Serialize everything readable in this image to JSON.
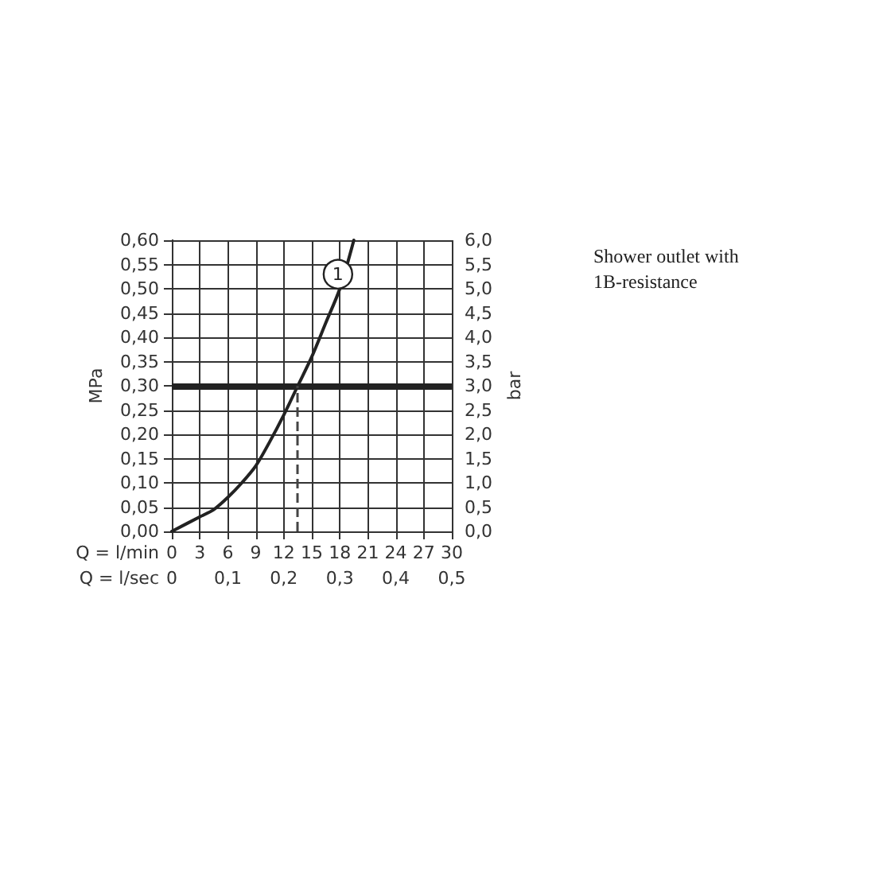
{
  "chart_data": {
    "type": "line",
    "title": "Shower outlet with 1B-resistance",
    "xlabel": "Q = l/min",
    "x2label": "Q = l/sec",
    "ylabel": "MPa",
    "y2label": "bar",
    "series": [
      {
        "color": "#222222",
        "x": [
          0,
          3,
          4.5,
          6,
          7.5,
          9,
          10.5,
          12,
          13.5,
          15,
          16.5,
          18,
          19.5
        ],
        "values": [
          0,
          0.03,
          0.045,
          0.07,
          0.1,
          0.135,
          0.185,
          0.24,
          0.3,
          0.36,
          0.43,
          0.5,
          0.6
        ]
      }
    ],
    "marker": "none",
    "line_style": "solid",
    "grid": true,
    "xlim": [
      0,
      30
    ],
    "xticks": [
      0,
      3,
      6,
      9,
      12,
      15,
      18,
      21,
      24,
      27,
      30
    ],
    "x2lim": [
      0,
      0.5
    ],
    "x2ticks": [
      0,
      {
        "value": 0.1,
        "label": "0,1"
      },
      {
        "value": 0.2,
        "label": "0,2"
      },
      {
        "value": 0.3,
        "label": "0,3"
      },
      {
        "value": 0.4,
        "label": "0,4"
      },
      {
        "value": 0.5,
        "label": "0,5"
      }
    ],
    "ylim": [
      0,
      0.6
    ],
    "yticks": [
      {
        "value": 0,
        "label": "0,00"
      },
      {
        "value": 0.05,
        "label": "0,05"
      },
      {
        "value": 0.1,
        "label": "0,10"
      },
      {
        "value": 0.15,
        "label": "0,15"
      },
      {
        "value": 0.2,
        "label": "0,20"
      },
      {
        "value": 0.25,
        "label": "0,25"
      },
      {
        "value": 0.3,
        "label": "0,30"
      },
      {
        "value": 0.35,
        "label": "0,35"
      },
      {
        "value": 0.4,
        "label": "0,40"
      },
      {
        "value": 0.45,
        "label": "0,45"
      },
      {
        "value": 0.5,
        "label": "0,50"
      },
      {
        "value": 0.55,
        "label": "0,55"
      },
      {
        "value": 0.6,
        "label": "0,60"
      }
    ],
    "y2lim": [
      0,
      6
    ],
    "y2ticks": [
      {
        "value": 0,
        "label": "0,0"
      },
      {
        "value": 0.5,
        "label": "0,5"
      },
      {
        "value": 1,
        "label": "1,0"
      },
      {
        "value": 1.5,
        "label": "1,5"
      },
      {
        "value": 2,
        "label": "2,0"
      },
      {
        "value": 2.5,
        "label": "2,5"
      },
      {
        "value": 3,
        "label": "3,0"
      },
      {
        "value": 3.5,
        "label": "3,5"
      },
      {
        "value": 4,
        "label": "4,0"
      },
      {
        "value": 4.5,
        "label": "4,5"
      },
      {
        "value": 5,
        "label": "5,0"
      },
      {
        "value": 5.5,
        "label": "5,5"
      },
      {
        "value": 6,
        "label": "6,0"
      }
    ],
    "ref_lines": [
      {
        "axis": "y",
        "value": 0.3,
        "color": "#222222",
        "line_style": "solid"
      },
      {
        "axis": "x",
        "value": 13.5,
        "color": "#444444",
        "line_style": "dashed"
      }
    ],
    "annotations": [
      {
        "text": "1",
        "x": 17.8,
        "y": 0.53
      }
    ]
  }
}
